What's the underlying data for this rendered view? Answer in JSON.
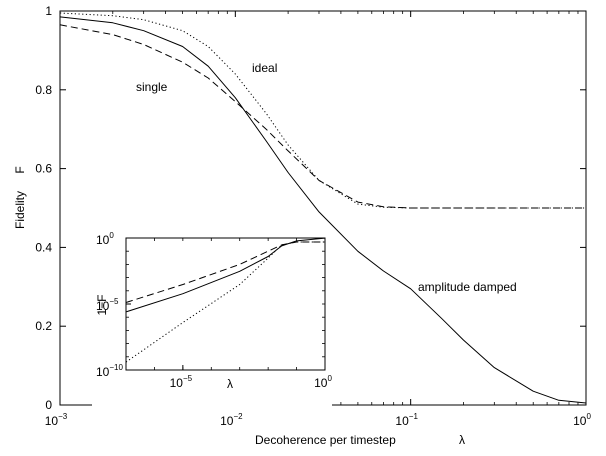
{
  "chart_data": [
    {
      "type": "line",
      "xscale": "log",
      "xlim": [
        0.001,
        1
      ],
      "ylim": [
        0,
        1
      ],
      "xlabel": "Decoherence per timestep",
      "xlabel_symbol": "λ",
      "ylabel": "Fidelity",
      "ylabel_symbol": "F",
      "x_ticks": [
        {
          "value": 0.001,
          "base": "10",
          "exp": "−3"
        },
        {
          "value": 0.01,
          "base": "10",
          "exp": "−2"
        },
        {
          "value": 0.1,
          "base": "10",
          "exp": "−1"
        },
        {
          "value": 1,
          "base": "10",
          "exp": "0"
        }
      ],
      "y_ticks": [
        {
          "value": 0,
          "label": "0"
        },
        {
          "value": 0.2,
          "label": "0.2"
        },
        {
          "value": 0.4,
          "label": "0.4"
        },
        {
          "value": 0.6,
          "label": "0.6"
        },
        {
          "value": 0.8,
          "label": "0.8"
        },
        {
          "value": 1,
          "label": "1"
        }
      ],
      "grid": false,
      "series": [
        {
          "name": "ideal",
          "style": "dotted",
          "x": [
            0.001,
            0.002,
            0.003,
            0.005,
            0.007,
            0.01,
            0.015,
            0.02,
            0.03,
            0.05,
            0.07,
            0.1,
            0.2,
            0.5,
            1
          ],
          "y": [
            0.995,
            0.988,
            0.978,
            0.95,
            0.91,
            0.84,
            0.74,
            0.66,
            0.57,
            0.51,
            0.502,
            0.5,
            0.5,
            0.5,
            0.5
          ]
        },
        {
          "name": "single",
          "style": "dashed",
          "x": [
            0.001,
            0.002,
            0.003,
            0.005,
            0.007,
            0.01,
            0.015,
            0.02,
            0.03,
            0.05,
            0.07,
            0.1,
            0.2,
            0.5,
            1
          ],
          "y": [
            0.965,
            0.94,
            0.915,
            0.87,
            0.83,
            0.77,
            0.7,
            0.645,
            0.57,
            0.515,
            0.503,
            0.5,
            0.5,
            0.5,
            0.5
          ]
        },
        {
          "name": "amplitude damped",
          "style": "solid",
          "x": [
            0.001,
            0.002,
            0.003,
            0.005,
            0.007,
            0.01,
            0.015,
            0.02,
            0.03,
            0.05,
            0.07,
            0.1,
            0.15,
            0.2,
            0.3,
            0.5,
            0.7,
            1
          ],
          "y": [
            0.985,
            0.97,
            0.95,
            0.91,
            0.86,
            0.78,
            0.67,
            0.59,
            0.49,
            0.39,
            0.34,
            0.295,
            0.22,
            0.165,
            0.095,
            0.035,
            0.012,
            0.005
          ]
        }
      ],
      "annotations": [
        {
          "text": "ideal",
          "series": "ideal"
        },
        {
          "text": "single",
          "series": "single"
        },
        {
          "text": "amplitude damped",
          "series": "amplitude damped"
        }
      ]
    },
    {
      "type": "line",
      "role": "inset",
      "xscale": "log",
      "yscale": "log",
      "xlim": [
        1e-07,
        1
      ],
      "ylim": [
        1e-10,
        1
      ],
      "xlabel": "λ",
      "ylabel": "1−F",
      "x_ticks": [
        {
          "value": 1e-05,
          "base": "10",
          "exp": "−5"
        },
        {
          "value": 1,
          "base": "10",
          "exp": "0"
        }
      ],
      "y_ticks": [
        {
          "value": 1e-10,
          "base": "10",
          "exp": "−10"
        },
        {
          "value": 1e-05,
          "base": "10",
          "exp": "−5"
        },
        {
          "value": 1,
          "base": "10",
          "exp": "0"
        }
      ],
      "series": [
        {
          "style": "dotted",
          "x": [
            1e-07,
            1e-05,
            0.001,
            0.01,
            0.03,
            0.1,
            1
          ],
          "y": [
            4e-10,
            4e-07,
            0.0003,
            0.03,
            0.3,
            0.5,
            0.5
          ]
        },
        {
          "style": "dashed",
          "x": [
            1e-07,
            1e-05,
            0.001,
            0.01,
            0.03,
            0.1,
            1
          ],
          "y": [
            1.3e-05,
            0.0003,
            0.01,
            0.1,
            0.3,
            0.5,
            0.5
          ]
        },
        {
          "style": "solid",
          "x": [
            1e-07,
            1e-05,
            0.001,
            0.01,
            0.03,
            0.1,
            1
          ],
          "y": [
            2.5e-06,
            6e-05,
            0.003,
            0.04,
            0.25,
            0.6,
            0.99
          ]
        }
      ]
    }
  ]
}
